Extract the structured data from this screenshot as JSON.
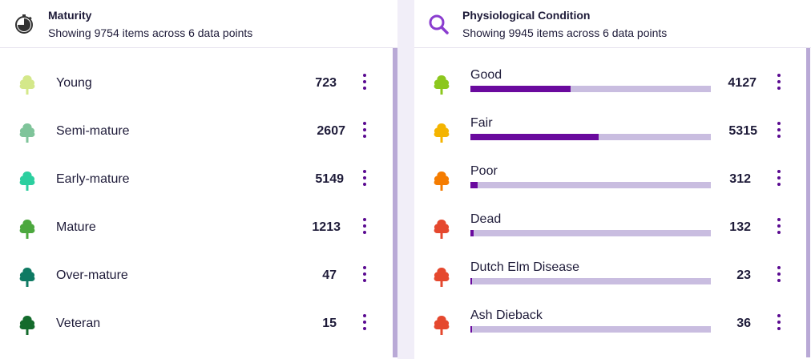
{
  "maturity": {
    "title": "Maturity",
    "subtitle": "Showing 9754 items across 6 data points",
    "icon": "stopwatch-icon",
    "items": [
      {
        "label": "Young",
        "count": "723",
        "color": "#d4e88a"
      },
      {
        "label": "Semi-mature",
        "count": "2607",
        "color": "#7fc49a"
      },
      {
        "label": "Early-mature",
        "count": "5149",
        "color": "#2ccf9f"
      },
      {
        "label": "Mature",
        "count": "1213",
        "color": "#4ca83e"
      },
      {
        "label": "Over-mature",
        "count": "47",
        "color": "#0f7a63"
      },
      {
        "label": "Veteran",
        "count": "15",
        "color": "#146b2c"
      }
    ]
  },
  "condition": {
    "title": "Physiological Condition",
    "subtitle": "Showing 9945 items across 6 data points",
    "icon": "search-icon",
    "items": [
      {
        "label": "Good",
        "count": "4127",
        "color": "#8cc71e",
        "fraction": 0.415
      },
      {
        "label": "Fair",
        "count": "5315",
        "color": "#f4b400",
        "fraction": 0.534
      },
      {
        "label": "Poor",
        "count": "312",
        "color": "#f57c00",
        "fraction": 0.031
      },
      {
        "label": "Dead",
        "count": "132",
        "color": "#e5482e",
        "fraction": 0.013
      },
      {
        "label": "Dutch Elm Disease",
        "count": "23",
        "color": "#e5482e",
        "fraction": 0.002
      },
      {
        "label": "Ash Dieback",
        "count": "36",
        "color": "#e5482e",
        "fraction": 0.004
      }
    ]
  },
  "accent": "#5a0a91"
}
